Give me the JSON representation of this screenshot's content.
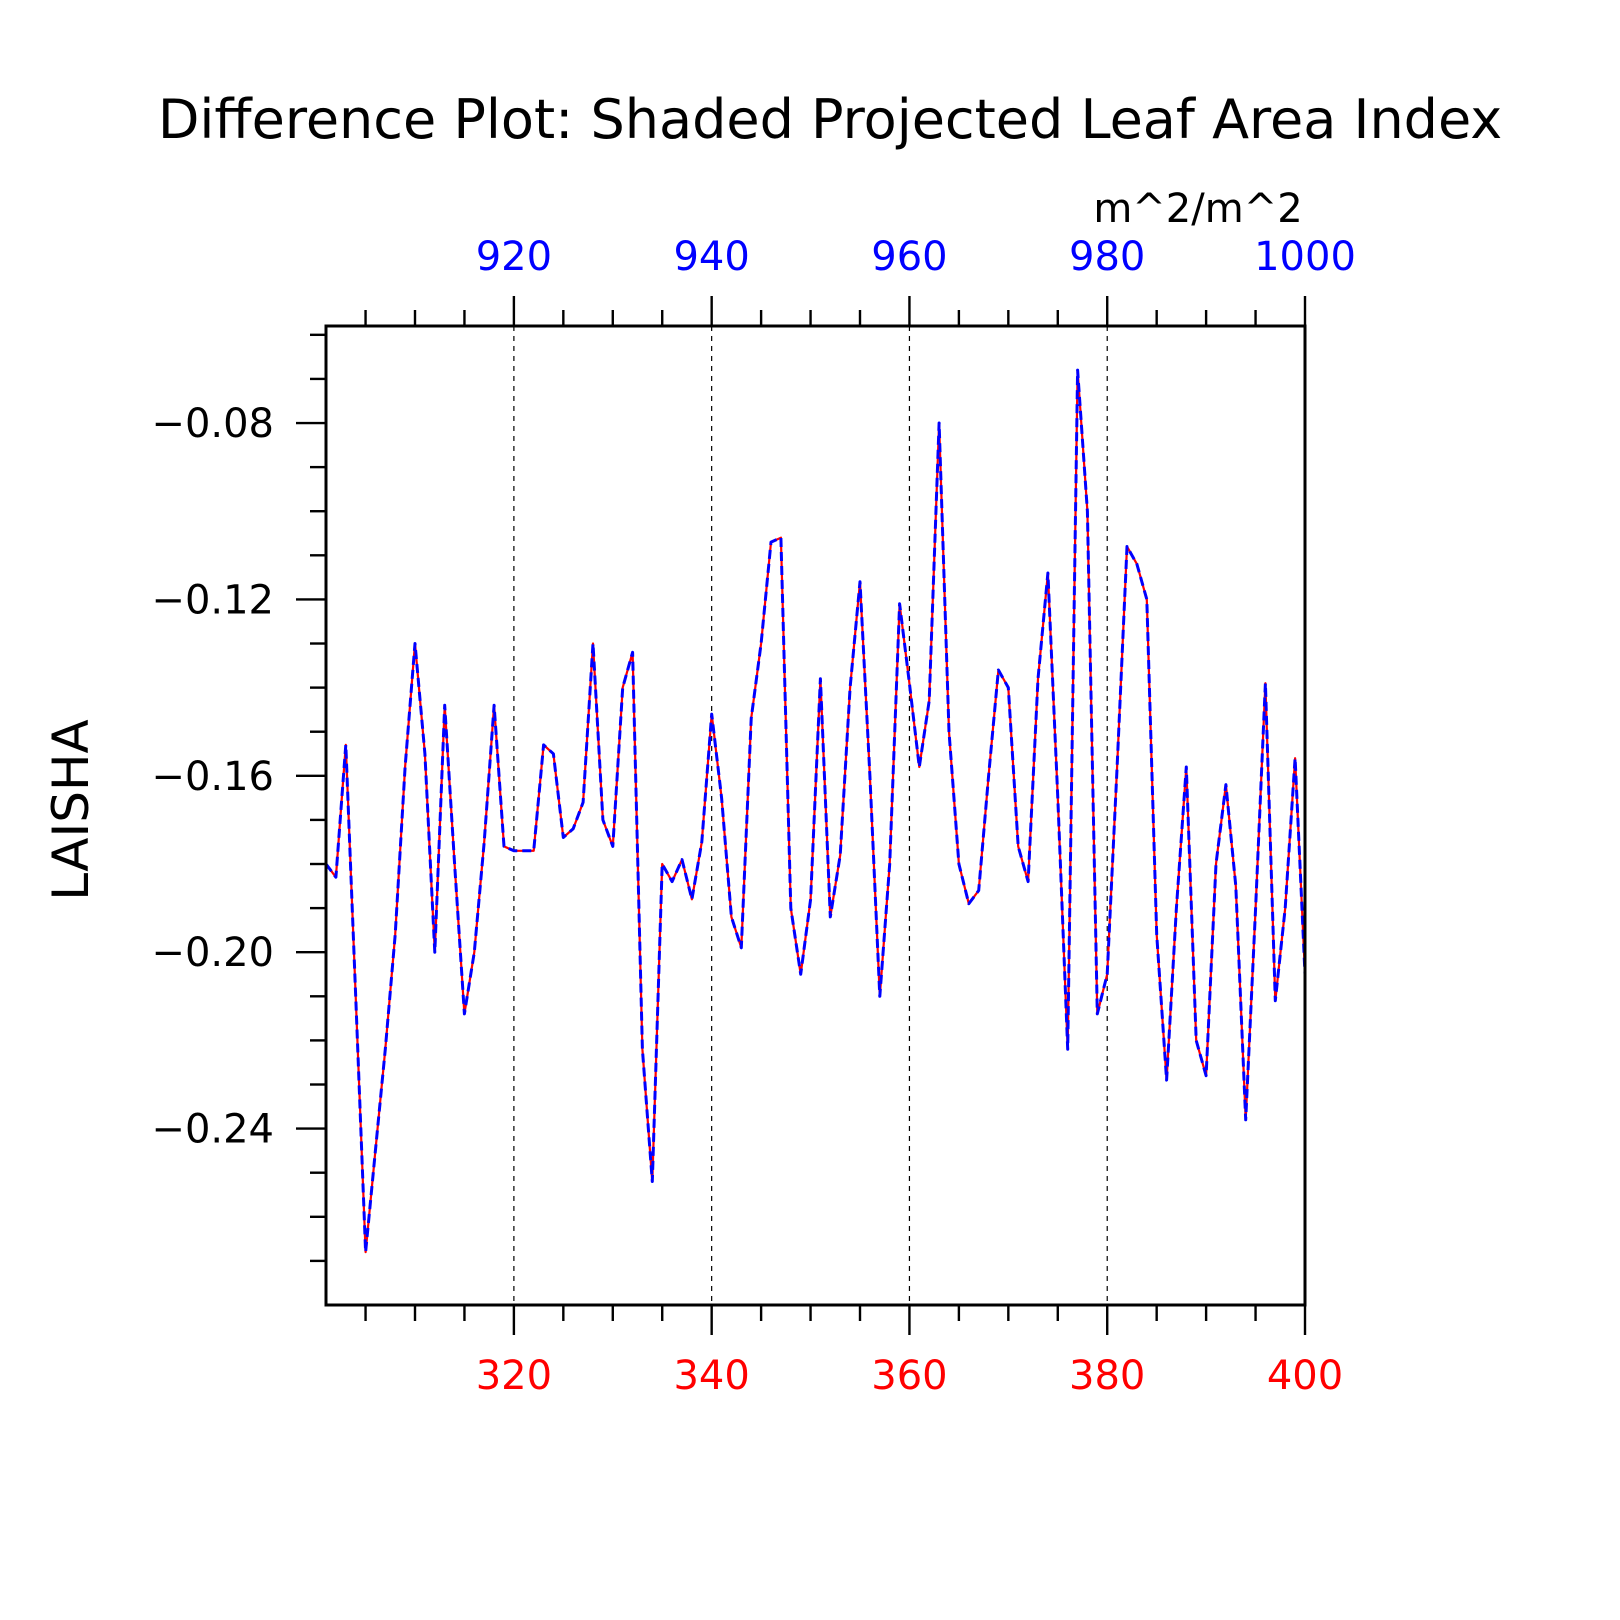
{
  "chart_data": {
    "type": "line",
    "title": "Difference Plot: Shaded Projected Leaf Area Index",
    "units": "m^2/m^2",
    "ylabel": "LAISHA",
    "ylim": [
      -0.28,
      -0.058
    ],
    "yticks": [
      "−0.08",
      "−0.12",
      "−0.16",
      "−0.20",
      "−0.24"
    ],
    "ytick_values": [
      -0.08,
      -0.12,
      -0.16,
      -0.2,
      -0.24
    ],
    "bottom_axis": {
      "range": [
        301,
        400
      ],
      "ticks": [
        "320",
        "340",
        "360",
        "380",
        "400"
      ],
      "tick_values": [
        320,
        340,
        360,
        380,
        400
      ],
      "color": "#ff0000"
    },
    "top_axis": {
      "range": [
        901,
        1000
      ],
      "ticks": [
        "920",
        "940",
        "960",
        "980",
        "1000"
      ],
      "tick_values": [
        920,
        940,
        960,
        980,
        1000
      ],
      "color": "#0000ff"
    },
    "grid": "vertical dashed at major ticks",
    "series": [
      {
        "color": "#ff0000",
        "style": "solid",
        "x": [
          301,
          302,
          303,
          304,
          305,
          306,
          307,
          308,
          309,
          310,
          311,
          312,
          313,
          314,
          315,
          316,
          317,
          318,
          319,
          320,
          321,
          322,
          323,
          324,
          325,
          326,
          327,
          328,
          329,
          330,
          331,
          332,
          333,
          334,
          335,
          336,
          337,
          338,
          339,
          340,
          341,
          342,
          343,
          344,
          345,
          346,
          347,
          348,
          349,
          350,
          351,
          352,
          353,
          354,
          355,
          356,
          357,
          358,
          359,
          360,
          361,
          362,
          363,
          364,
          365,
          366,
          367,
          368,
          369,
          370,
          371,
          372,
          373,
          374,
          375,
          376,
          377,
          378,
          379,
          380,
          381,
          382,
          383,
          384,
          385,
          386,
          387,
          388,
          389,
          390,
          391,
          392,
          393,
          394,
          395,
          396,
          397,
          398,
          399,
          400
        ],
        "values": [
          -0.18,
          -0.183,
          -0.153,
          -0.21,
          -0.268,
          -0.245,
          -0.222,
          -0.196,
          -0.158,
          -0.13,
          -0.155,
          -0.2,
          -0.144,
          -0.18,
          -0.214,
          -0.2,
          -0.175,
          -0.144,
          -0.176,
          -0.177,
          -0.177,
          -0.177,
          -0.153,
          -0.155,
          -0.174,
          -0.172,
          -0.166,
          -0.13,
          -0.17,
          -0.176,
          -0.14,
          -0.132,
          -0.222,
          -0.252,
          -0.18,
          -0.184,
          -0.179,
          -0.188,
          -0.175,
          -0.146,
          -0.165,
          -0.192,
          -0.199,
          -0.147,
          -0.13,
          -0.107,
          -0.106,
          -0.19,
          -0.205,
          -0.188,
          -0.138,
          -0.192,
          -0.178,
          -0.14,
          -0.116,
          -0.16,
          -0.21,
          -0.18,
          -0.121,
          -0.139,
          -0.158,
          -0.143,
          -0.08,
          -0.15,
          -0.18,
          -0.189,
          -0.186,
          -0.16,
          -0.136,
          -0.14,
          -0.176,
          -0.184,
          -0.138,
          -0.114,
          -0.165,
          -0.222,
          -0.068,
          -0.1,
          -0.214,
          -0.205,
          -0.158,
          -0.108,
          -0.112,
          -0.12,
          -0.196,
          -0.229,
          -0.19,
          -0.158,
          -0.22,
          -0.228,
          -0.18,
          -0.162,
          -0.185,
          -0.238,
          -0.19,
          -0.139,
          -0.211,
          -0.19,
          -0.156,
          -0.205
        ]
      },
      {
        "color": "#0000ff",
        "style": "dashed",
        "x": [
          301,
          302,
          303,
          304,
          305,
          306,
          307,
          308,
          309,
          310,
          311,
          312,
          313,
          314,
          315,
          316,
          317,
          318,
          319,
          320,
          321,
          322,
          323,
          324,
          325,
          326,
          327,
          328,
          329,
          330,
          331,
          332,
          333,
          334,
          335,
          336,
          337,
          338,
          339,
          340,
          341,
          342,
          343,
          344,
          345,
          346,
          347,
          348,
          349,
          350,
          351,
          352,
          353,
          354,
          355,
          356,
          357,
          358,
          359,
          360,
          361,
          362,
          363,
          364,
          365,
          366,
          367,
          368,
          369,
          370,
          371,
          372,
          373,
          374,
          375,
          376,
          377,
          378,
          379,
          380,
          381,
          382,
          383,
          384,
          385,
          386,
          387,
          388,
          389,
          390,
          391,
          392,
          393,
          394,
          395,
          396,
          397,
          398,
          399,
          400
        ],
        "values": [
          -0.18,
          -0.183,
          -0.153,
          -0.21,
          -0.268,
          -0.245,
          -0.222,
          -0.196,
          -0.158,
          -0.13,
          -0.155,
          -0.2,
          -0.144,
          -0.18,
          -0.214,
          -0.2,
          -0.175,
          -0.144,
          -0.176,
          -0.177,
          -0.177,
          -0.177,
          -0.153,
          -0.155,
          -0.174,
          -0.172,
          -0.166,
          -0.13,
          -0.17,
          -0.176,
          -0.14,
          -0.132,
          -0.222,
          -0.252,
          -0.18,
          -0.184,
          -0.179,
          -0.188,
          -0.175,
          -0.146,
          -0.165,
          -0.192,
          -0.199,
          -0.147,
          -0.13,
          -0.107,
          -0.106,
          -0.19,
          -0.205,
          -0.188,
          -0.138,
          -0.192,
          -0.178,
          -0.14,
          -0.116,
          -0.16,
          -0.21,
          -0.18,
          -0.121,
          -0.139,
          -0.158,
          -0.143,
          -0.08,
          -0.15,
          -0.18,
          -0.189,
          -0.186,
          -0.16,
          -0.136,
          -0.14,
          -0.176,
          -0.184,
          -0.138,
          -0.114,
          -0.165,
          -0.222,
          -0.068,
          -0.1,
          -0.214,
          -0.205,
          -0.158,
          -0.108,
          -0.112,
          -0.12,
          -0.196,
          -0.229,
          -0.19,
          -0.158,
          -0.22,
          -0.228,
          -0.18,
          -0.162,
          -0.185,
          -0.238,
          -0.19,
          -0.139,
          -0.211,
          -0.19,
          -0.156,
          -0.205
        ]
      }
    ]
  }
}
